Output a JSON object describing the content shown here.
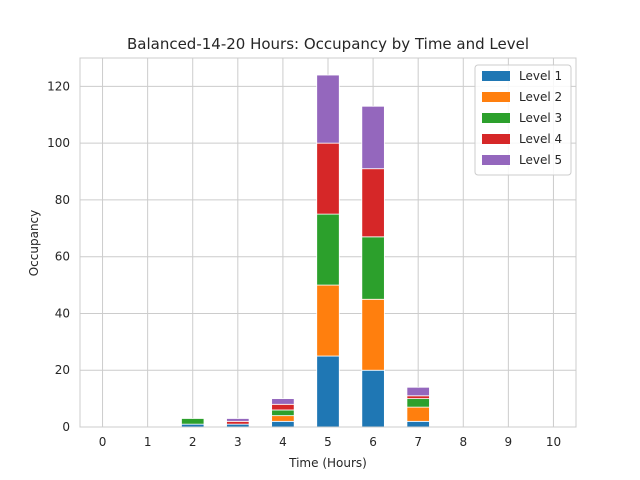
{
  "chart_data": {
    "type": "bar",
    "stacked": true,
    "title": "Balanced-14-20 Hours: Occupancy by Time and Level",
    "xlabel": "Time (Hours)",
    "ylabel": "Occupancy",
    "categories": [
      "0",
      "1",
      "2",
      "3",
      "4",
      "5",
      "6",
      "7",
      "8",
      "9",
      "10"
    ],
    "ylim": [
      0,
      130
    ],
    "yticks": [
      0,
      20,
      40,
      60,
      80,
      100,
      120
    ],
    "grid": true,
    "legend_position": "top-right",
    "series": [
      {
        "name": "Level 1",
        "color": "#1f77b4",
        "values": [
          0,
          0,
          1,
          1,
          2,
          25,
          20,
          2,
          0,
          0,
          0
        ]
      },
      {
        "name": "Level 2",
        "color": "#ff7f0e",
        "values": [
          0,
          0,
          0,
          0,
          2,
          25,
          25,
          5,
          0,
          0,
          0
        ]
      },
      {
        "name": "Level 3",
        "color": "#2ca02c",
        "values": [
          0,
          0,
          2,
          0,
          2,
          25,
          22,
          3,
          0,
          0,
          0
        ]
      },
      {
        "name": "Level 4",
        "color": "#d62728",
        "values": [
          0,
          0,
          0,
          1,
          2,
          25,
          24,
          1,
          0,
          0,
          0
        ]
      },
      {
        "name": "Level 5",
        "color": "#9467bd",
        "values": [
          0,
          0,
          0,
          1,
          2,
          24,
          22,
          3,
          0,
          0,
          0
        ]
      }
    ]
  }
}
